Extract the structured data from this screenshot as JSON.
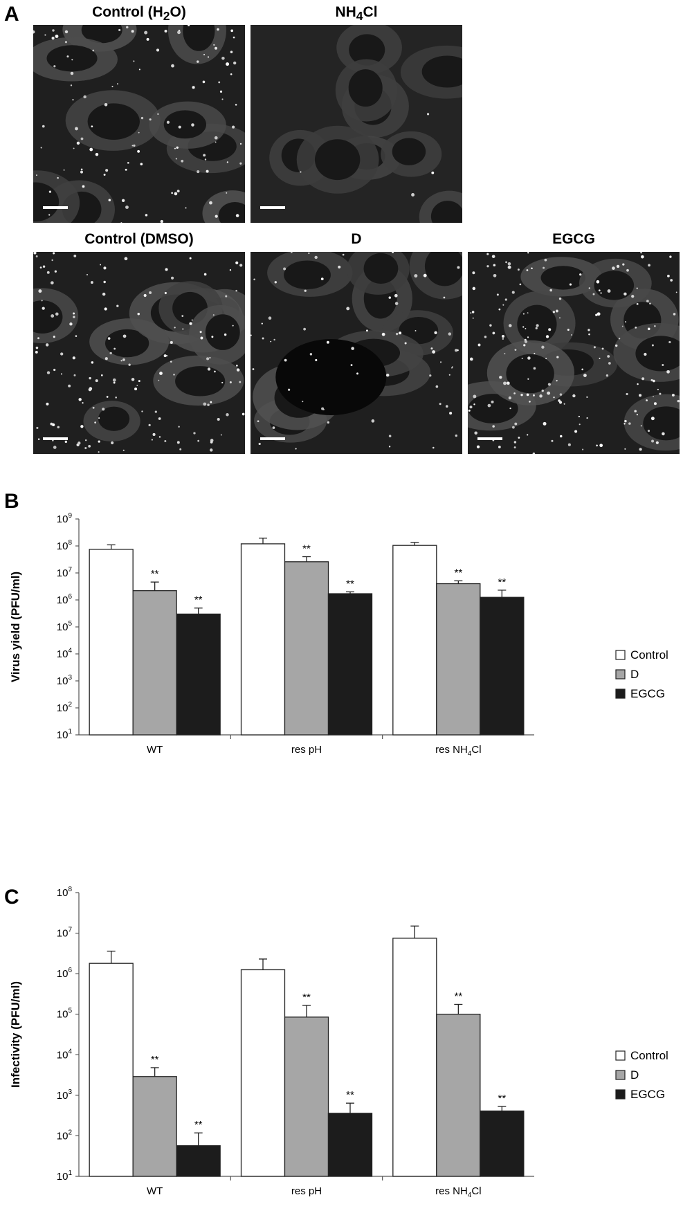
{
  "panel_a": {
    "letter": "A",
    "images": [
      {
        "title_main": "Control (H",
        "title_sub": "2",
        "title_end": "O)"
      },
      {
        "title_main": "NH",
        "title_sub": "4",
        "title_end": "Cl"
      },
      {
        "title_main": "Control (DMSO)",
        "title_sub": "",
        "title_end": ""
      },
      {
        "title_main": "D",
        "title_sub": "",
        "title_end": ""
      },
      {
        "title_main": "EGCG",
        "title_sub": "",
        "title_end": ""
      }
    ]
  },
  "panel_b": {
    "letter": "B"
  },
  "panel_c": {
    "letter": "C"
  },
  "chart_data": [
    {
      "type": "bar",
      "ylabel": "Virus yield  (PFU/ml)",
      "yscale": "log",
      "ylim": [
        10,
        1000000000
      ],
      "yticks": [
        1,
        2,
        3,
        4,
        5,
        6,
        7,
        8,
        9
      ],
      "categories": [
        "WT",
        "res pH",
        "res NH4Cl"
      ],
      "category_labels": [
        {
          "main": "WT",
          "sub": "",
          "end": ""
        },
        {
          "main": "res pH",
          "sub": "",
          "end": ""
        },
        {
          "main": "res NH",
          "sub": "4",
          "end": "Cl"
        }
      ],
      "series": [
        {
          "name": "Control",
          "color": "#ffffff",
          "values": [
            75000000,
            120000000,
            105000000
          ],
          "err_top": [
            110000000,
            195000000,
            135000000
          ],
          "sig": [
            "",
            "",
            ""
          ]
        },
        {
          "name": "D",
          "color": "#a6a6a6",
          "values": [
            2200000,
            26000000,
            4000000
          ],
          "err_top": [
            4600000,
            40000000,
            5100000
          ],
          "sig": [
            "**",
            "**",
            "**"
          ]
        },
        {
          "name": "EGCG",
          "color": "#1c1c1c",
          "values": [
            300000,
            1700000,
            1250000
          ],
          "err_top": [
            500000,
            2000000,
            2300000
          ],
          "sig": [
            "**",
            "**",
            "**"
          ]
        }
      ],
      "legend_position": "right"
    },
    {
      "type": "bar",
      "ylabel": "Infectivity (PFU/ml)",
      "yscale": "log",
      "ylim": [
        10,
        100000000
      ],
      "yticks": [
        1,
        2,
        3,
        4,
        5,
        6,
        7,
        8
      ],
      "categories": [
        "WT",
        "res pH",
        "res NH4Cl"
      ],
      "category_labels": [
        {
          "main": "WT",
          "sub": "",
          "end": ""
        },
        {
          "main": "res pH",
          "sub": "",
          "end": ""
        },
        {
          "main": "res NH",
          "sub": "4",
          "end": "Cl"
        }
      ],
      "series": [
        {
          "name": "Control",
          "color": "#ffffff",
          "values": [
            1800000,
            1250000,
            7500000
          ],
          "err_top": [
            3600000,
            2300000,
            15000000
          ],
          "sig": [
            "",
            "",
            ""
          ]
        },
        {
          "name": "D",
          "color": "#a6a6a6",
          "values": [
            2900,
            85000,
            100000
          ],
          "err_top": [
            4800,
            165000,
            175000
          ],
          "sig": [
            "**",
            "**",
            "**"
          ]
        },
        {
          "name": "EGCG",
          "color": "#1c1c1c",
          "values": [
            57,
            360,
            410
          ],
          "err_top": [
            118,
            640,
            530
          ],
          "sig": [
            "**",
            "**",
            "**"
          ]
        }
      ],
      "legend_position": "right"
    }
  ]
}
